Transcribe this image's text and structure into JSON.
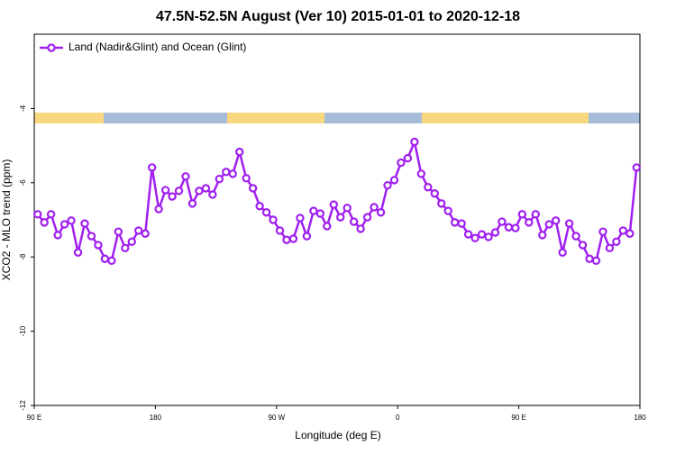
{
  "chart_data": {
    "type": "line",
    "title": "47.5N-52.5N August (Ver 10)   2015-01-01 to 2020-12-18",
    "x_label": "Longitude (deg E)",
    "y_label": "XCO2 - MLO trend (ppm)",
    "legend_position": "upper left",
    "x": [
      92.5,
      97.5,
      102.5,
      107.5,
      112.5,
      117.5,
      122.5,
      127.5,
      132.5,
      137.5,
      142.5,
      147.5,
      152.5,
      157.5,
      162.5,
      167.5,
      172.5,
      177.5,
      182.5,
      187.5,
      192.5,
      197.5,
      202.5,
      207.5,
      212.5,
      217.5,
      222.5,
      227.5,
      232.5,
      237.5,
      242.5,
      247.5,
      252.5,
      257.5,
      262.5,
      267.5,
      272.5,
      277.5,
      282.5,
      287.5,
      292.5,
      297.5,
      302.5,
      307.5,
      312.5,
      317.5,
      322.5,
      327.5,
      332.5,
      337.5,
      342.5,
      347.5,
      352.5,
      357.5,
      362.5,
      367.5,
      372.5,
      377.5,
      382.5,
      387.5,
      392.5,
      397.5,
      402.5,
      407.5,
      412.5,
      417.5,
      422.5,
      427.5,
      432.5,
      437.5,
      442.5,
      447.5,
      452.5,
      457.5,
      462.5,
      467.5,
      472.5,
      477.5,
      482.5,
      487.5,
      492.5,
      497.5,
      502.5,
      507.5,
      512.5,
      517.5,
      522.5,
      527.5,
      532.5,
      537.5
    ],
    "series": [
      {
        "name": "Land (Nadir&Glint) and Ocean (Glint)",
        "color": "#a020f0",
        "values": [
          -6.85,
          -7.07,
          -6.85,
          -7.41,
          -7.12,
          -7.02,
          -7.88,
          -7.1,
          -7.44,
          -7.68,
          -8.05,
          -8.1,
          -7.32,
          -7.76,
          -7.59,
          -7.29,
          -7.37,
          -5.59,
          -6.71,
          -6.2,
          -6.37,
          -6.22,
          -5.83,
          -6.56,
          -6.22,
          -6.15,
          -6.32,
          -5.9,
          -5.71,
          -5.76,
          -5.17,
          -5.88,
          -6.15,
          -6.63,
          -6.8,
          -7.0,
          -7.29,
          -7.54,
          -7.51,
          -6.95,
          -7.44,
          -6.76,
          -6.83,
          -7.17,
          -6.59,
          -6.93,
          -6.68,
          -7.05,
          -7.24,
          -6.93,
          -6.66,
          -6.8,
          -6.07,
          -5.93,
          -5.46,
          -5.34,
          -4.9,
          -5.76,
          -6.12,
          -6.29,
          -6.56,
          -6.76,
          -7.07,
          -7.1,
          -7.39,
          -7.49,
          -7.39,
          -7.46,
          -7.34,
          -7.05,
          -7.2,
          -7.22,
          -6.85,
          -7.07,
          -6.85,
          -7.41,
          -7.12,
          -7.02,
          -7.88,
          -7.1,
          -7.44,
          -7.68,
          -8.05,
          -8.1,
          -7.32,
          -7.76,
          -7.59,
          -7.29,
          -7.37,
          -5.59
        ]
      }
    ],
    "xlim": [
      90,
      540
    ],
    "xticks": [
      {
        "value": 90,
        "label": "90 E"
      },
      180,
      {
        "value": 270,
        "label": "90 W"
      },
      {
        "value": 360,
        "label": "0"
      },
      {
        "value": 450,
        "label": "90 E"
      },
      {
        "value": 540,
        "label": "180"
      }
    ],
    "ylim": [
      -12,
      -2
    ],
    "yticks": [
      -4,
      -6,
      -8,
      -10,
      -12
    ]
  }
}
